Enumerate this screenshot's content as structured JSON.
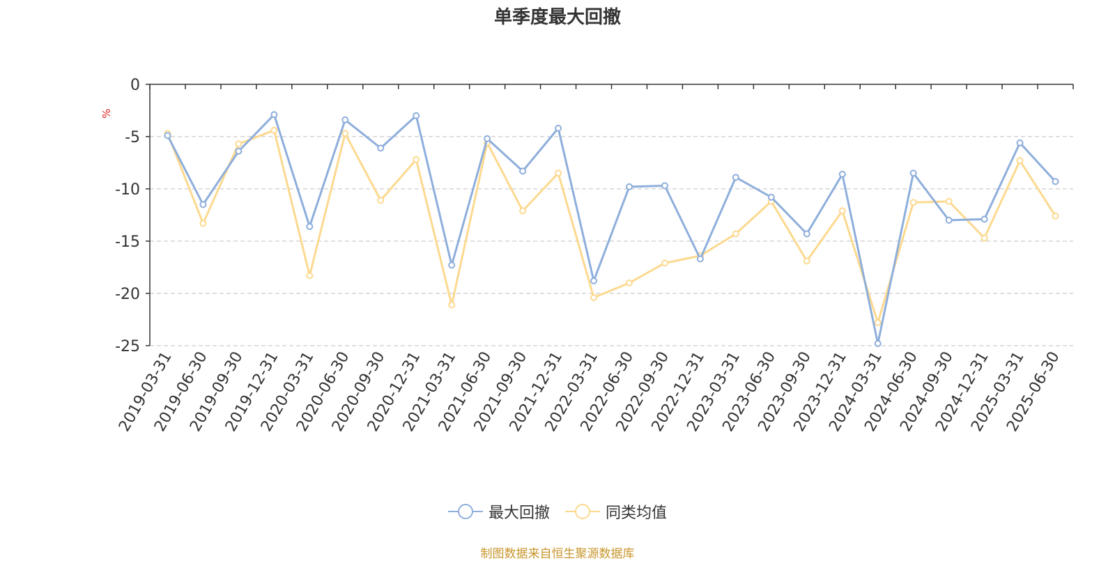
{
  "chart_data": {
    "type": "line",
    "title": "单季度最大回撤",
    "ylabel": "%",
    "ylim": [
      -25,
      0
    ],
    "yticks": [
      0,
      -5,
      -10,
      -15,
      -20,
      -25
    ],
    "grid": true,
    "legend_position": "bottom-center",
    "categories": [
      "2019-03-31",
      "2019-06-30",
      "2019-09-30",
      "2019-12-31",
      "2020-03-31",
      "2020-06-30",
      "2020-09-30",
      "2020-12-31",
      "2021-03-31",
      "2021-06-30",
      "2021-09-30",
      "2021-12-31",
      "2022-03-31",
      "2022-06-30",
      "2022-09-30",
      "2022-12-31",
      "2023-03-31",
      "2023-06-30",
      "2023-09-30",
      "2023-12-31",
      "2024-03-31",
      "2024-06-30",
      "2024-09-30",
      "2024-12-31",
      "2025-03-31",
      "2025-06-30"
    ],
    "series": [
      {
        "name": "最大回撤",
        "color": "#8eaedb",
        "values": [
          -4.9,
          -11.5,
          -6.4,
          -2.9,
          -13.6,
          -3.4,
          -6.1,
          -3.0,
          -17.3,
          -5.2,
          -8.3,
          -4.2,
          -18.8,
          -9.8,
          -9.7,
          -16.7,
          -8.9,
          -10.8,
          -14.3,
          -8.6,
          -24.8,
          -8.5,
          -13.0,
          -12.9,
          -5.6,
          -9.3
        ]
      },
      {
        "name": "同类均值",
        "color": "#fcd98f",
        "values": [
          -4.7,
          -13.3,
          -5.7,
          -4.4,
          -18.3,
          -4.7,
          -11.1,
          -7.2,
          -21.1,
          -5.6,
          -12.1,
          -8.5,
          -20.4,
          -19.0,
          -17.1,
          -16.4,
          -14.3,
          -11.2,
          -16.9,
          -12.1,
          -22.8,
          -11.3,
          -11.2,
          -14.7,
          -7.3,
          -12.6
        ]
      }
    ]
  },
  "source_text": "制图数据来自恒生聚源数据库"
}
